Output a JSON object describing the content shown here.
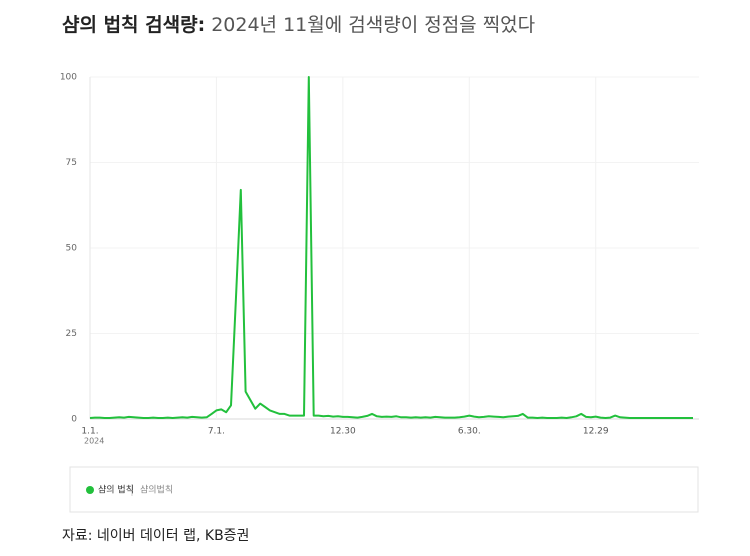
{
  "chart_data": {
    "type": "line",
    "title": "샴의 법칙 검색량:",
    "subtitle": "2024년 11월에 검색량이 정점을 찍었다",
    "categories": [
      "1.1.",
      null,
      null,
      null,
      null,
      null,
      null,
      null,
      null,
      null,
      null,
      null,
      null,
      null,
      null,
      null,
      null,
      null,
      null,
      null,
      null,
      null,
      null,
      null,
      null,
      null,
      "7.1.",
      null,
      null,
      null,
      null,
      null,
      null,
      null,
      null,
      null,
      null,
      null,
      null,
      null,
      null,
      null,
      null,
      null,
      null,
      null,
      null,
      null,
      null,
      null,
      null,
      null,
      "12.30",
      null,
      null,
      null,
      null,
      null,
      null,
      null,
      null,
      null,
      null,
      null,
      null,
      null,
      null,
      null,
      null,
      null,
      null,
      null,
      null,
      null,
      null,
      null,
      null,
      null,
      "6.30.",
      null,
      null,
      null,
      null,
      null,
      null,
      null,
      null,
      null,
      null,
      null,
      null,
      null,
      null,
      null,
      null,
      null,
      null,
      null,
      null,
      null,
      null,
      null,
      null,
      null,
      "12.29",
      null,
      null,
      null,
      null,
      null,
      null,
      null,
      null,
      null,
      null,
      null,
      null,
      null,
      null,
      null,
      null,
      null,
      null,
      null,
      null
    ],
    "x_sublabel": "2024",
    "series": [
      {
        "name": "샴의 법칙",
        "color": "#22c03c",
        "values": [
          0.3,
          0.4,
          0.4,
          0.3,
          0.3,
          0.4,
          0.5,
          0.4,
          0.6,
          0.5,
          0.4,
          0.3,
          0.3,
          0.4,
          0.3,
          0.3,
          0.4,
          0.3,
          0.4,
          0.5,
          0.4,
          0.6,
          0.5,
          0.4,
          0.5,
          1.5,
          2.5,
          2.8,
          2,
          4,
          35,
          67,
          8,
          5.5,
          3,
          4.5,
          3.5,
          2.5,
          2,
          1.5,
          1.5,
          1,
          1,
          1,
          1,
          100,
          1,
          1,
          0.8,
          0.9,
          0.7,
          0.8,
          0.6,
          0.6,
          0.5,
          0.4,
          0.6,
          0.9,
          1.5,
          0.8,
          0.6,
          0.7,
          0.6,
          0.8,
          0.5,
          0.5,
          0.4,
          0.5,
          0.4,
          0.5,
          0.4,
          0.6,
          0.5,
          0.4,
          0.4,
          0.4,
          0.5,
          0.7,
          1,
          0.7,
          0.5,
          0.6,
          0.8,
          0.7,
          0.6,
          0.5,
          0.7,
          0.8,
          0.9,
          1.5,
          0.4,
          0.4,
          0.3,
          0.4,
          0.3,
          0.3,
          0.3,
          0.4,
          0.3,
          0.5,
          0.8,
          1.5,
          0.6,
          0.5,
          0.7,
          0.4,
          0.3,
          0.4,
          1,
          0.5,
          0.4,
          0.3,
          0.3,
          0.3,
          0.3,
          0.3,
          0.3,
          0.3,
          0.3,
          0.3,
          0.3,
          0.3,
          0.3,
          0.3,
          0.3
        ]
      }
    ],
    "legend_keyword": "샴의법칙",
    "ylim": [
      0,
      100
    ],
    "yticks": [
      0,
      25,
      50,
      75,
      100
    ],
    "grid": true
  },
  "source": "자료: 네이버 데이터 랩, KB증권"
}
